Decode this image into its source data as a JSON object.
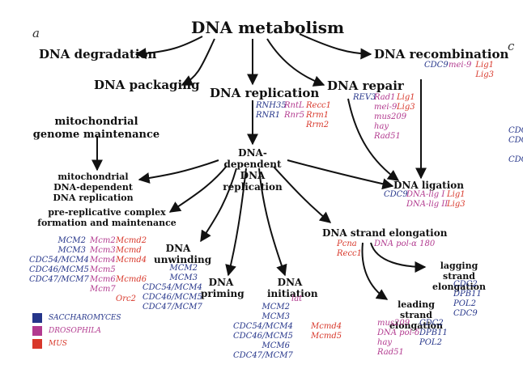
{
  "panel_label": "a",
  "panel_label_next": "c",
  "colors": {
    "saccharomyces": "#25358a",
    "drosophila": "#b23a8f",
    "mus": "#d8382b",
    "arrow": "#111111"
  },
  "nodes": {
    "root": "DNA metabolism",
    "degradation": "DNA degradation",
    "packaging": "DNA packaging",
    "replication": "DNA replication",
    "repair": "DNA repair",
    "recombination": "DNA recombination",
    "mito_maint": "mitochondrial\ngenome maintenance",
    "dna_dep_rep": "DNA-dependent\nDNA replication",
    "mito_rep": "mitochondrial\nDNA-dependent\nDNA replication",
    "prerep": "pre-replicative complex\nformation and maintenance",
    "unwinding": "DNA\nunwinding",
    "priming": "DNA\npriming",
    "initiation": "DNA\ninitiation",
    "ligation": "DNA ligation",
    "strand_elong": "DNA strand elongation",
    "lagging": "lagging strand\nelongation",
    "leading": "leading strand\nelongation"
  },
  "genes": {
    "recomb_sa": "CDC9",
    "recomb_dr": "mei-9",
    "recomb_mu": "Lig1\nLig3",
    "replication_sa": "RNH35\nRNR1",
    "replication_dr": "RntL\nRnr5",
    "replication_mu": "Recc1\nRrm1\nRrm2",
    "repair_sa": "REV3",
    "repair_dr": "Rad1\nmei-9\nmus209\nhay\nRad51",
    "repair_mu": "Lig1\nLig3",
    "ligation_sa": "CDC9",
    "ligation_dr": "DNA-lig I\nDNA-lig II",
    "ligation_mu": "Lig1\nLig3",
    "prerep_sa": "MCM2\nMCM3\nCDC54/MCM4\nCDC46/MCM5\nCDC47/MCM7",
    "prerep_dr": "Mcm2\nMcm3\nMcm4\nMcm5\nMcm6\nMcm7",
    "prerep_mu": "Mcmd2\nMcmd\nMcmd4\n\nMcmd6\n\nOrc2",
    "unwinding_sa": "MCM2\nMCM3\nCDC54/MCM4\nCDC46/MCM5\nCDC47/MCM7",
    "initiation_dr": "lat",
    "initiation_sa": "MCM2\nMCM3\nCDC54/MCM4\nCDC46/MCM5\nMCM6\nCDC47/MCM7",
    "initiation_mu": "Mcmd4\nMcmd5",
    "elong_mu": "Pcna\nRecc1",
    "elong_dr": "DNA pol-α 180",
    "lagging_sa": "CDC2\nDPB11\nPOL2\nCDC9",
    "leading_dr": "mus209\nDNA pol-δ\nhay\nRad51",
    "leading_sa": "CDC2\nDPB11\nPOL2",
    "edge_sa": "CDC\nCDC\n\nCDC"
  },
  "legend": [
    {
      "label": "SACCHAROMYCES",
      "color": "#25358a"
    },
    {
      "label": "DROSOPHILA",
      "color": "#b23a8f"
    },
    {
      "label": "MUS",
      "color": "#d8382b"
    }
  ]
}
